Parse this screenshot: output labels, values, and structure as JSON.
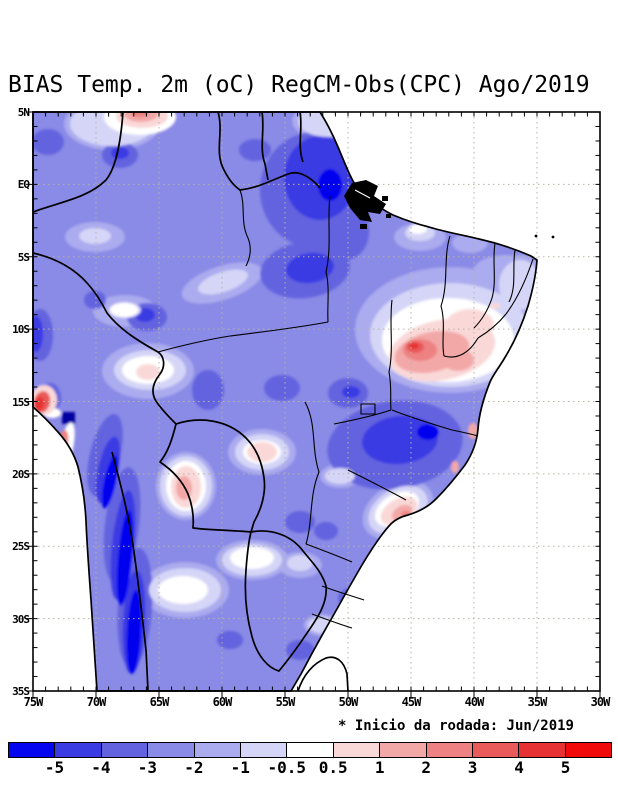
{
  "title": "BIAS Temp. 2m (oC) RegCM-Obs(CPC) Ago/2019",
  "note": "* Inicio da rodada: Jun/2019",
  "map": {
    "lat_labels": [
      "5N",
      "EQ",
      "5S",
      "10S",
      "15S",
      "20S",
      "25S",
      "30S",
      "35S"
    ],
    "lon_labels": [
      "75W",
      "70W",
      "65W",
      "60W",
      "55W",
      "50W",
      "45W",
      "40W",
      "35W",
      "30W"
    ]
  },
  "colorbar": {
    "tick_labels": [
      "-5",
      "-4",
      "-3",
      "-2",
      "-1",
      "-0.5",
      "0.5",
      "1",
      "2",
      "3",
      "4",
      "5"
    ],
    "colors": [
      "#0505EF",
      "#3B3BE4",
      "#6363DF",
      "#8A8AE7",
      "#ABABEF",
      "#D5D5F7",
      "#FFFFFF",
      "#FAD8D8",
      "#F3A8A8",
      "#EE8181",
      "#E95A5A",
      "#E63232",
      "#F00A0A"
    ]
  },
  "chart_data": {
    "type": "heatmap",
    "title": "BIAS Temp. 2m (oC) RegCM-Obs(CPC) Ago/2019",
    "xlabel": "",
    "ylabel": "",
    "x_ticks": [
      "75W",
      "70W",
      "65W",
      "60W",
      "55W",
      "50W",
      "45W",
      "40W",
      "35W",
      "30W"
    ],
    "y_ticks": [
      "5N",
      "EQ",
      "5S",
      "10S",
      "15S",
      "20S",
      "25S",
      "30S",
      "35S"
    ],
    "lon_range_deg_west": [
      75,
      30
    ],
    "lat_range_deg": [
      5,
      -35
    ],
    "levels_oC": [
      -5,
      -4,
      -3,
      -2,
      -1,
      -0.5,
      0.5,
      1,
      2,
      3,
      4,
      5
    ],
    "units": "oC",
    "grid": "dotted 5-degree graticule",
    "legend_position": "bottom horizontal colorbar",
    "annotation": "* Inicio da rodada: Jun/2019",
    "notable_features": [
      {
        "region": "most of Brazil / Amazon basin",
        "bias_oC": "-1 to -3 (cold)"
      },
      {
        "region": "Guianas / Amapa (north, ~52W 0-4N)",
        "bias_oC": "-3 to -4"
      },
      {
        "region": "Andes cordillera (~70W, 15S-35S)",
        "bias_oC": "-4 to below -5 (strongest cold)"
      },
      {
        "region": "interior Northeast Brazil (~45W 10S)",
        "bias_oC": "+1 to +3 (warm)"
      },
      {
        "region": "Peru/Chile coastal strip",
        "bias_oC": "+1 to +4 (warm)"
      },
      {
        "region": "Rio de Janeiro coast (~43W 22S)",
        "bias_oC": "+0.5 to +2"
      },
      {
        "region": "small spot north edge (~67W 5N)",
        "bias_oC": "+1 to +2"
      },
      {
        "region": "ocean",
        "bias_oC": "no data (white)"
      }
    ]
  }
}
